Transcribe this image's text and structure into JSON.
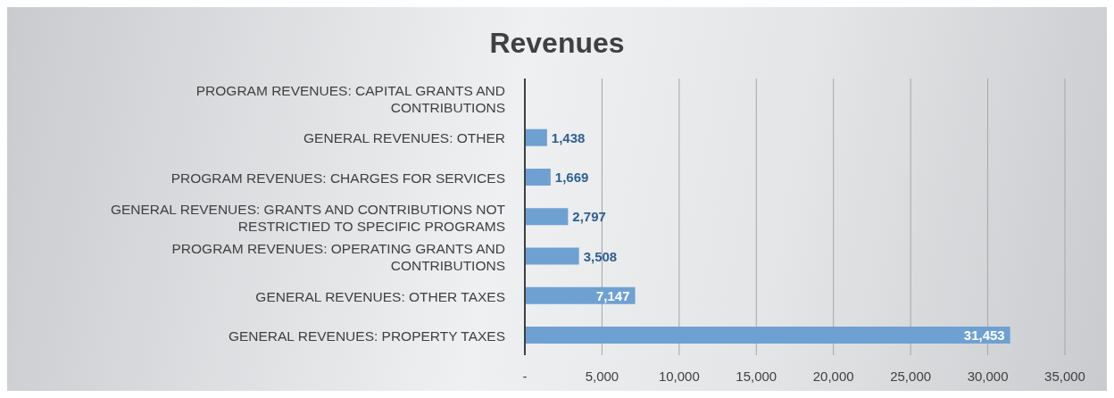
{
  "chart_data": {
    "type": "bar",
    "orientation": "horizontal",
    "title": "Revenues",
    "categories": [
      "PROGRAM REVENUES: CAPITAL GRANTS AND CONTRIBUTIONS",
      "GENERAL REVENUES: OTHER",
      "PROGRAM REVENUES: CHARGES FOR SERVICES",
      "GENERAL REVENUES: GRANTS AND CONTRIBUTIONS NOT RESTRICTIED TO SPECIFIC PROGRAMS",
      "PROGRAM REVENUES: OPERATING GRANTS AND CONTRIBUTIONS",
      "GENERAL REVENUES: OTHER TAXES",
      "GENERAL REVENUES: PROPERTY TAXES"
    ],
    "values": [
      null,
      1438,
      1669,
      2797,
      3508,
      7147,
      31453
    ],
    "value_labels": [
      null,
      "1,438",
      "1,669",
      "2,797",
      "3,508",
      "7,147",
      "31,453"
    ],
    "color": "#6fa0d2",
    "xlim": [
      0,
      35000
    ],
    "xticks": [
      {
        "value": 0,
        "label": "-"
      },
      {
        "value": 5000,
        "label": "5,000"
      },
      {
        "value": 10000,
        "label": "10,000"
      },
      {
        "value": 15000,
        "label": "15,000"
      },
      {
        "value": 20000,
        "label": "20,000"
      },
      {
        "value": 25000,
        "label": "25,000"
      },
      {
        "value": 30000,
        "label": "30,000"
      },
      {
        "value": 35000,
        "label": "35,000"
      }
    ],
    "grid": "x"
  }
}
